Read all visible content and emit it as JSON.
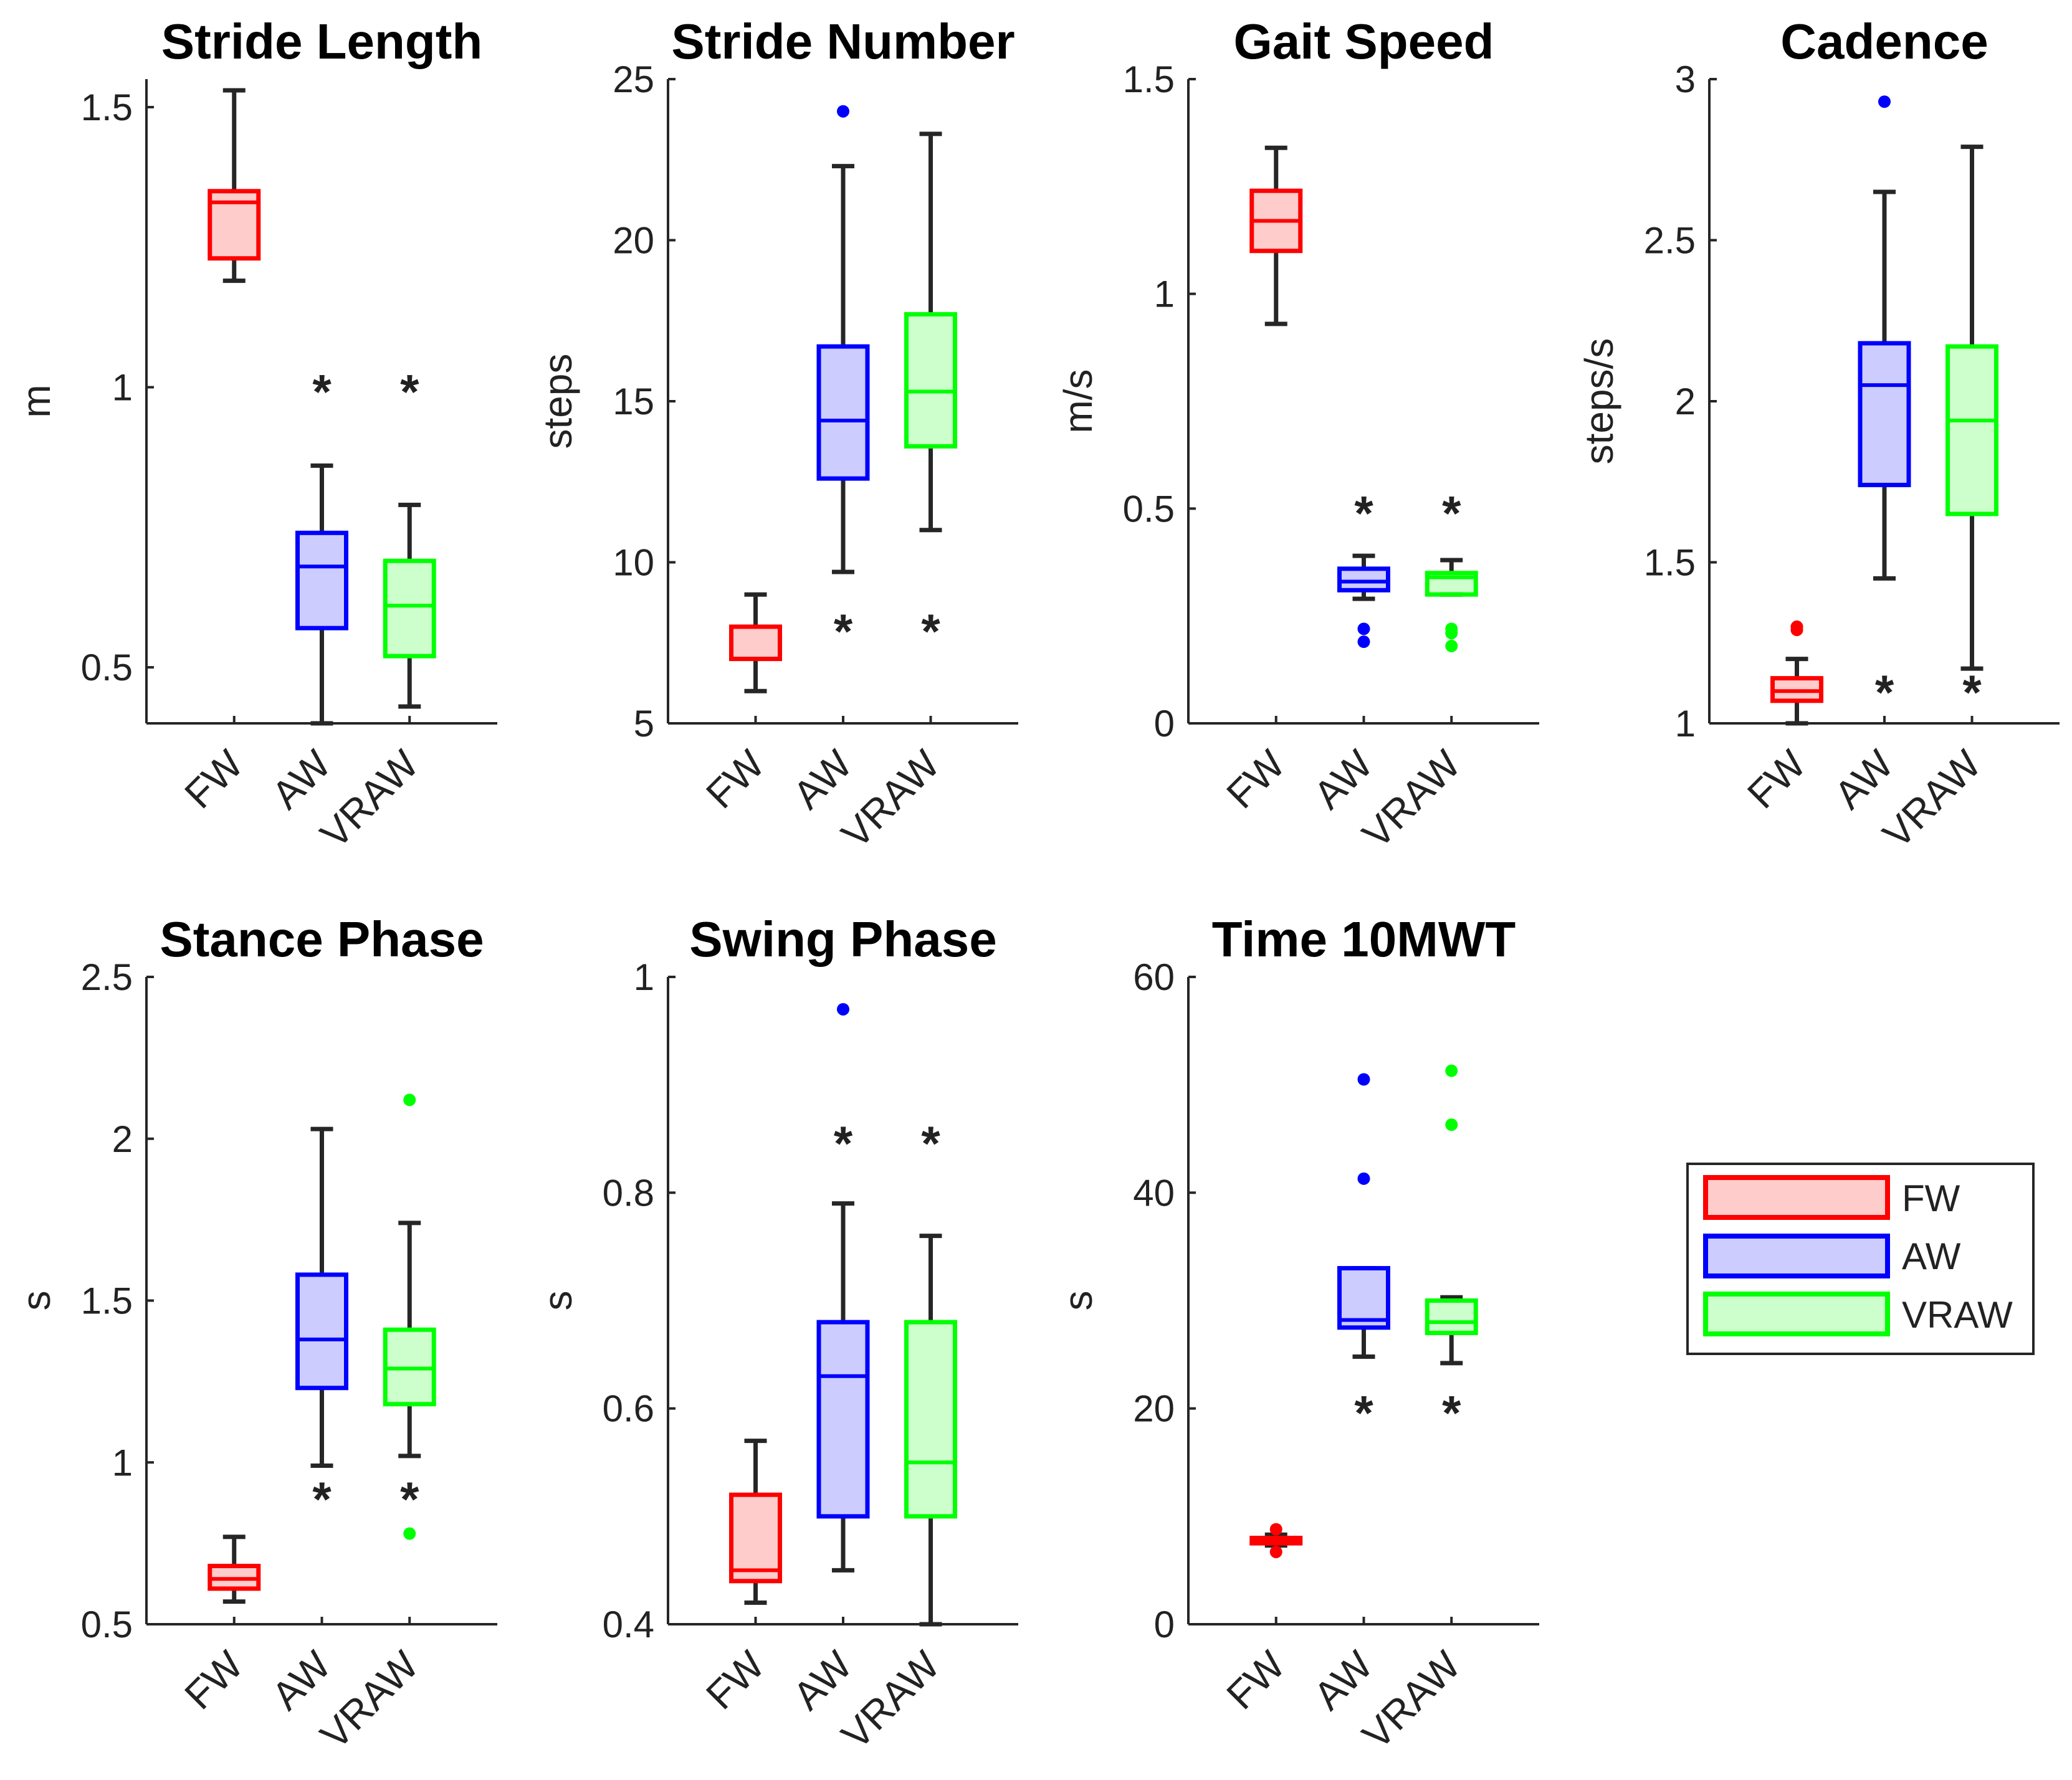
{
  "colors": {
    "FW": "#ff0000",
    "AW": "#0000ff",
    "VRAW": "#00ff00",
    "axis": "#262626",
    "whisker": "#262626"
  },
  "legend": {
    "entries": [
      "FW",
      "AW",
      "VRAW"
    ]
  },
  "chart_data": [
    {
      "type": "box",
      "title": "Stride Length",
      "ylabel": "m",
      "ylim": [
        0.4,
        1.55
      ],
      "yticks": [
        0.5,
        1,
        1.5
      ],
      "ytick_labels": [
        "0.5",
        "1",
        "1.5"
      ],
      "categories": [
        "FW",
        "AW",
        "VRAW"
      ],
      "boxes": [
        {
          "group": "FW",
          "whisker_low": 1.19,
          "q1": 1.23,
          "median": 1.33,
          "q3": 1.35,
          "whisker_high": 1.53,
          "outliers": []
        },
        {
          "group": "AW",
          "whisker_low": 0.4,
          "q1": 0.57,
          "median": 0.68,
          "q3": 0.74,
          "whisker_high": 0.86,
          "outliers": []
        },
        {
          "group": "VRAW",
          "whisker_low": 0.43,
          "q1": 0.52,
          "median": 0.61,
          "q3": 0.69,
          "whisker_high": 0.79,
          "outliers": []
        }
      ],
      "significance": [
        {
          "group": "AW",
          "y": 1.0,
          "label": "*"
        },
        {
          "group": "VRAW",
          "y": 1.0,
          "label": "*"
        }
      ]
    },
    {
      "type": "box",
      "title": "Stride Number",
      "ylabel": "steps",
      "ylim": [
        5,
        25
      ],
      "yticks": [
        5,
        10,
        15,
        20,
        25
      ],
      "ytick_labels": [
        "5",
        "10",
        "15",
        "20",
        "25"
      ],
      "categories": [
        "FW",
        "AW",
        "VRAW"
      ],
      "boxes": [
        {
          "group": "FW",
          "whisker_low": 6,
          "q1": 7,
          "median": 7,
          "q3": 8,
          "whisker_high": 9,
          "outliers": []
        },
        {
          "group": "AW",
          "whisker_low": 9.7,
          "q1": 12.6,
          "median": 14.4,
          "q3": 16.7,
          "whisker_high": 22.3,
          "outliers": [
            24
          ]
        },
        {
          "group": "VRAW",
          "whisker_low": 11,
          "q1": 13.6,
          "median": 15.3,
          "q3": 17.7,
          "whisker_high": 23.3,
          "outliers": []
        }
      ],
      "significance": [
        {
          "group": "AW",
          "y": 8.0,
          "label": "*"
        },
        {
          "group": "VRAW",
          "y": 8.0,
          "label": "*"
        }
      ]
    },
    {
      "type": "box",
      "title": "Gait Speed",
      "ylabel": "m/s",
      "ylim": [
        0,
        1.5
      ],
      "yticks": [
        0,
        0.5,
        1,
        1.5
      ],
      "ytick_labels": [
        "0",
        "0.5",
        "1",
        "1.5"
      ],
      "categories": [
        "FW",
        "AW",
        "VRAW"
      ],
      "boxes": [
        {
          "group": "FW",
          "whisker_low": 0.93,
          "q1": 1.1,
          "median": 1.17,
          "q3": 1.24,
          "whisker_high": 1.34,
          "outliers": []
        },
        {
          "group": "AW",
          "whisker_low": 0.29,
          "q1": 0.31,
          "median": 0.33,
          "q3": 0.36,
          "whisker_high": 0.39,
          "outliers": [
            0.22,
            0.19
          ]
        },
        {
          "group": "VRAW",
          "whisker_low": 0.3,
          "q1": 0.3,
          "median": 0.34,
          "q3": 0.35,
          "whisker_high": 0.38,
          "outliers": [
            0.22,
            0.21,
            0.18
          ]
        }
      ],
      "significance": [
        {
          "group": "AW",
          "y": 0.5,
          "label": "*"
        },
        {
          "group": "VRAW",
          "y": 0.5,
          "label": "*"
        }
      ]
    },
    {
      "type": "box",
      "title": "Cadence",
      "ylabel": "steps/s",
      "ylim": [
        1,
        3
      ],
      "yticks": [
        1,
        1.5,
        2,
        2.5,
        3
      ],
      "ytick_labels": [
        "1",
        "1.5",
        "2",
        "2.5",
        "3"
      ],
      "categories": [
        "FW",
        "AW",
        "VRAW"
      ],
      "boxes": [
        {
          "group": "FW",
          "whisker_low": 1.0,
          "q1": 1.07,
          "median": 1.1,
          "q3": 1.14,
          "whisker_high": 1.2,
          "outliers": [
            1.29,
            1.3
          ]
        },
        {
          "group": "AW",
          "whisker_low": 1.45,
          "q1": 1.74,
          "median": 2.05,
          "q3": 2.18,
          "whisker_high": 2.65,
          "outliers": [
            2.93
          ]
        },
        {
          "group": "VRAW",
          "whisker_low": 1.17,
          "q1": 1.65,
          "median": 1.94,
          "q3": 2.17,
          "whisker_high": 2.79,
          "outliers": []
        }
      ],
      "significance": [
        {
          "group": "AW",
          "y": 1.11,
          "label": "*"
        },
        {
          "group": "VRAW",
          "y": 1.11,
          "label": "*"
        }
      ]
    },
    {
      "type": "box",
      "title": "Stance Phase",
      "ylabel": "s",
      "ylim": [
        0.5,
        2.5
      ],
      "yticks": [
        0.5,
        1,
        1.5,
        2,
        2.5
      ],
      "ytick_labels": [
        "0.5",
        "1",
        "1.5",
        "2",
        "2.5"
      ],
      "categories": [
        "FW",
        "AW",
        "VRAW"
      ],
      "boxes": [
        {
          "group": "FW",
          "whisker_low": 0.57,
          "q1": 0.61,
          "median": 0.64,
          "q3": 0.68,
          "whisker_high": 0.77,
          "outliers": []
        },
        {
          "group": "AW",
          "whisker_low": 0.99,
          "q1": 1.23,
          "median": 1.38,
          "q3": 1.58,
          "whisker_high": 2.03,
          "outliers": []
        },
        {
          "group": "VRAW",
          "whisker_low": 1.02,
          "q1": 1.18,
          "median": 1.29,
          "q3": 1.41,
          "whisker_high": 1.74,
          "outliers": [
            2.12,
            0.78
          ]
        }
      ],
      "significance": [
        {
          "group": "AW",
          "y": 0.9,
          "label": "*"
        },
        {
          "group": "VRAW",
          "y": 0.9,
          "label": "*"
        }
      ]
    },
    {
      "type": "box",
      "title": "Swing Phase",
      "ylabel": "s",
      "ylim": [
        0.4,
        1.0
      ],
      "yticks": [
        0.4,
        0.6,
        0.8,
        1
      ],
      "ytick_labels": [
        "0.4",
        "0.6",
        "0.8",
        "1"
      ],
      "categories": [
        "FW",
        "AW",
        "VRAW"
      ],
      "boxes": [
        {
          "group": "FW",
          "whisker_low": 0.42,
          "q1": 0.44,
          "median": 0.45,
          "q3": 0.52,
          "whisker_high": 0.57,
          "outliers": []
        },
        {
          "group": "AW",
          "whisker_low": 0.45,
          "q1": 0.5,
          "median": 0.63,
          "q3": 0.68,
          "whisker_high": 0.79,
          "outliers": [
            0.97
          ]
        },
        {
          "group": "VRAW",
          "whisker_low": 0.4,
          "q1": 0.5,
          "median": 0.55,
          "q3": 0.68,
          "whisker_high": 0.76,
          "outliers": []
        }
      ],
      "significance": [
        {
          "group": "AW",
          "y": 0.85,
          "label": "*"
        },
        {
          "group": "VRAW",
          "y": 0.85,
          "label": "*"
        }
      ]
    },
    {
      "type": "box",
      "title": "Time 10MWT",
      "ylabel": "s",
      "ylim": [
        0,
        60
      ],
      "yticks": [
        0,
        20,
        40,
        60
      ],
      "ytick_labels": [
        "0",
        "20",
        "40",
        "60"
      ],
      "categories": [
        "FW",
        "AW",
        "VRAW"
      ],
      "boxes": [
        {
          "group": "FW",
          "whisker_low": 7.3,
          "q1": 7.5,
          "median": 7.8,
          "q3": 8.0,
          "whisker_high": 8.3,
          "outliers": [
            6.7,
            8.8
          ]
        },
        {
          "group": "AW",
          "whisker_low": 24.8,
          "q1": 27.5,
          "median": 28.2,
          "q3": 33.0,
          "whisker_high": 33.0,
          "outliers": [
            41.3,
            50.5
          ]
        },
        {
          "group": "VRAW",
          "whisker_low": 24.2,
          "q1": 27.0,
          "median": 28.0,
          "q3": 30.0,
          "whisker_high": 30.3,
          "outliers": [
            46.3,
            51.3
          ]
        }
      ],
      "significance": [
        {
          "group": "AW",
          "y": 20,
          "label": "*"
        },
        {
          "group": "VRAW",
          "y": 20,
          "label": "*"
        }
      ]
    }
  ]
}
